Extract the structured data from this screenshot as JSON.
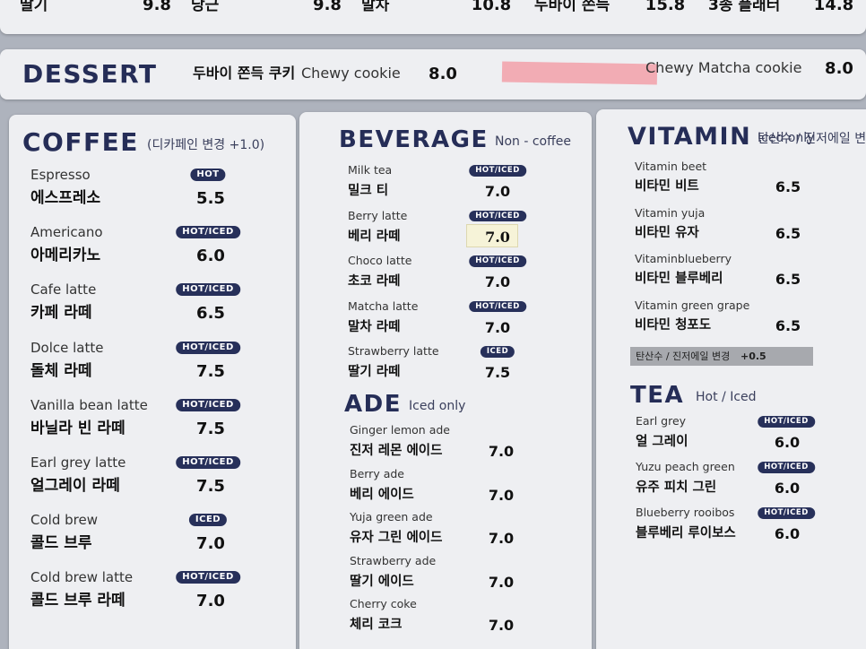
{
  "top_row": [
    {
      "name": "딸기",
      "price": "9.8"
    },
    {
      "name": "당근",
      "price": "9.8"
    },
    {
      "name": "말차",
      "price": "10.8"
    },
    {
      "name": "두바이 쫀득",
      "price": "15.8"
    },
    {
      "name": "3종 플래터",
      "price": "14.8"
    }
  ],
  "dessert": {
    "title": "DESSERT",
    "items": [
      {
        "ko": "두바이 쫀득 쿠키",
        "en": "Chewy cookie",
        "price": "8.0"
      },
      {
        "en": "Chewy Matcha cookie",
        "price": "8.0"
      }
    ]
  },
  "coffee": {
    "title": "COFFEE",
    "note": "(디카페인 변경 +1.0)",
    "items": [
      {
        "en": "Espresso",
        "ko": "에스프레소",
        "tag": "HOT",
        "price": "5.5"
      },
      {
        "en": "Americano",
        "ko": "아메리카노",
        "tag": "HOT/ICED",
        "price": "6.0"
      },
      {
        "en": "Cafe latte",
        "ko": "카페 라떼",
        "tag": "HOT/ICED",
        "price": "6.5"
      },
      {
        "en": "Dolce latte",
        "ko": "돌체 라떼",
        "tag": "HOT/ICED",
        "price": "7.5"
      },
      {
        "en": "Vanilla bean latte",
        "ko": "바닐라 빈 라떼",
        "tag": "HOT/ICED",
        "price": "7.5"
      },
      {
        "en": "Earl grey latte",
        "ko": "얼그레이 라떼",
        "tag": "HOT/ICED",
        "price": "7.5"
      },
      {
        "en": "Cold brew",
        "ko": "콜드 브루",
        "tag": "ICED",
        "price": "7.0"
      },
      {
        "en": "Cold brew latte",
        "ko": "콜드 브루 라떼",
        "tag": "HOT/ICED",
        "price": "7.0"
      }
    ]
  },
  "beverage": {
    "title": "BEVERAGE",
    "subtitle": "Non - coffee",
    "items": [
      {
        "en": "Milk tea",
        "ko": "밀크 티",
        "tag": "HOT/ICED",
        "price": "7.0"
      },
      {
        "en": "Berry latte",
        "ko": "베리 라떼",
        "tag": "HOT/ICED",
        "price": "7.0"
      },
      {
        "en": "Choco latte",
        "ko": "초코 라떼",
        "tag": "HOT/ICED",
        "price": "7.0"
      },
      {
        "en": "Matcha latte",
        "ko": "말차 라떼",
        "tag": "HOT/ICED",
        "price": "7.0"
      },
      {
        "en": "Strawberry latte",
        "ko": "딸기 라떼",
        "tag": "ICED",
        "price": "7.5"
      }
    ]
  },
  "ade": {
    "title": "ADE",
    "subtitle": "Iced only",
    "items": [
      {
        "en": "Ginger lemon ade",
        "ko": "진저 레몬 에이드",
        "price": "7.0"
      },
      {
        "en": "Berry ade",
        "ko": "베리 에이드",
        "price": "7.0"
      },
      {
        "en": "Yuja green ade",
        "ko": "유자 그린 에이드",
        "price": "7.0"
      },
      {
        "en": "Strawberry ade",
        "ko": "딸기 에이드",
        "price": "7.0"
      },
      {
        "en": "Cherry coke",
        "ko": "체리 코크",
        "price": "7.0"
      }
    ]
  },
  "vitamin": {
    "title": "VITAMIN",
    "subtitle": "Iced only",
    "items": [
      {
        "en": "Vitamin beet",
        "ko": "비타민 비트",
        "price": "6.5"
      },
      {
        "en": "Vitamin yuja",
        "ko": "비타민 유자",
        "price": "6.5"
      },
      {
        "en": "Vitaminblueberry",
        "ko": "비타민 블루베리",
        "price": "6.5"
      },
      {
        "en": "Vitamin green grape",
        "ko": "비타민 청포도",
        "price": "6.5"
      }
    ],
    "note": "탄산수 / 진저에일 변경",
    "note_price": "+0.5"
  },
  "tea": {
    "title": "TEA",
    "subtitle": "Hot / Iced",
    "items": [
      {
        "en": "Earl grey",
        "ko": "얼 그레이",
        "tag": "HOT/ICED",
        "price": "6.0"
      },
      {
        "en": "Yuzu peach green",
        "ko": "유주 피치 그린",
        "tag": "HOT/ICED",
        "price": "6.0"
      },
      {
        "en": "Blueberry rooibos",
        "ko": "블루베리 루이보스",
        "tag": "HOT/ICED",
        "price": "6.0"
      }
    ]
  }
}
